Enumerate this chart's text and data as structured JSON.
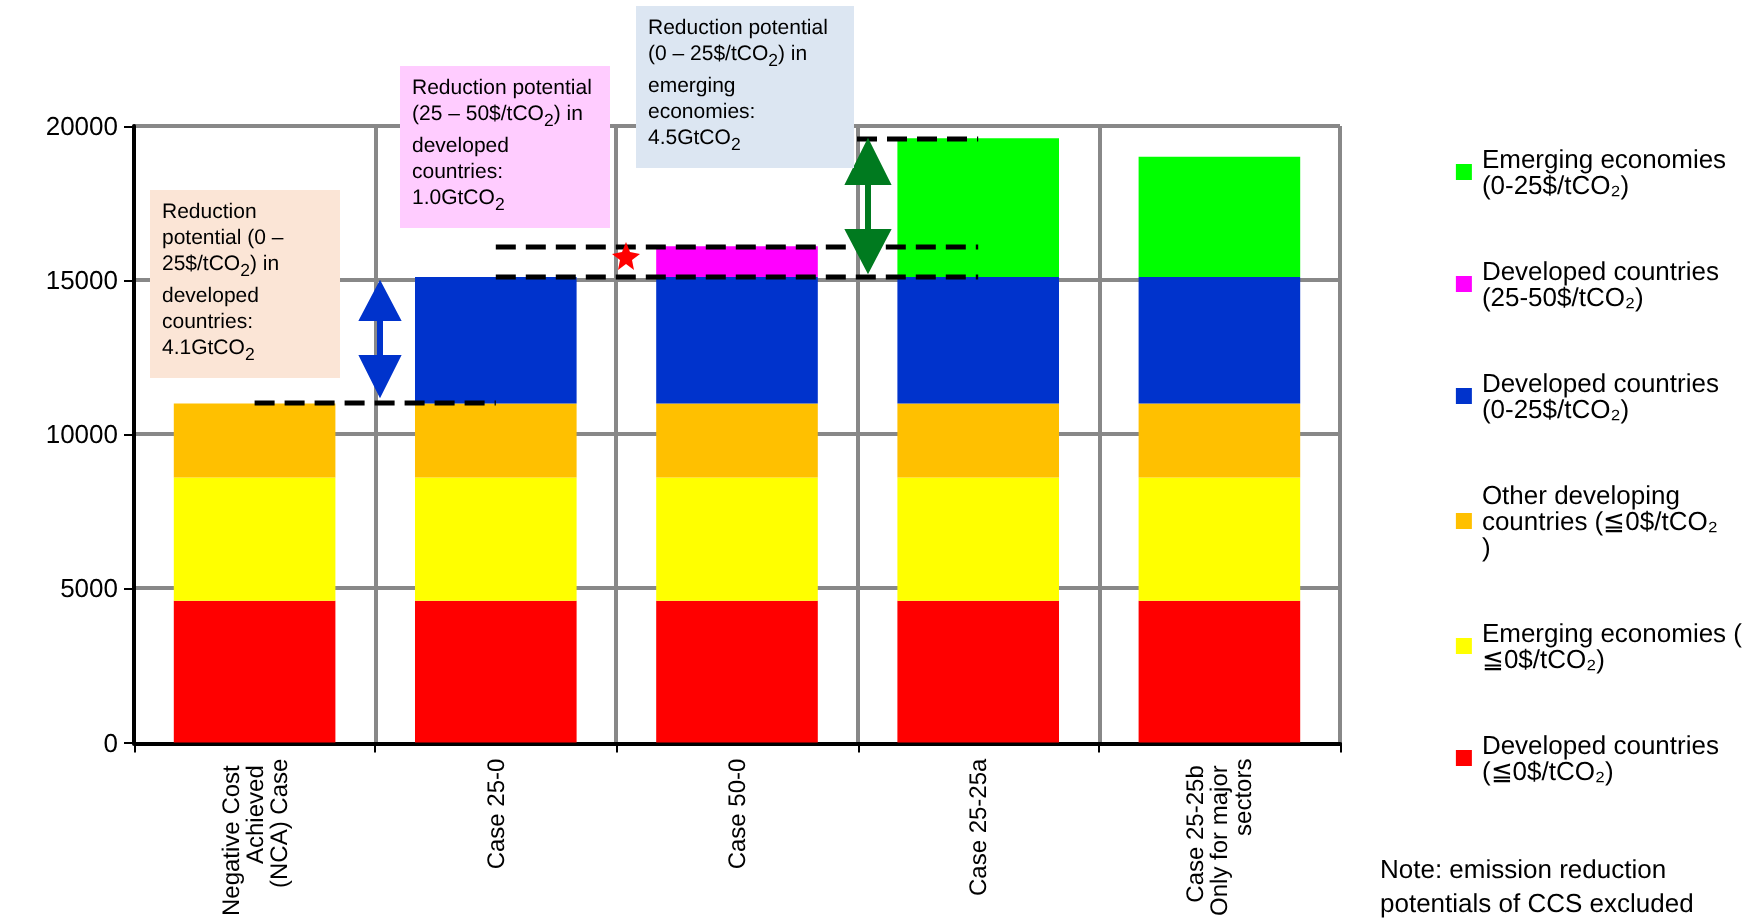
{
  "chart_data": {
    "type": "bar",
    "stacked": true,
    "categories": [
      "Negative Cost Achieved (NCA) Case",
      "Case 25-0",
      "Case 50-0",
      "Case 25-25a",
      "Case 25-25b Only for major sectors"
    ],
    "series": [
      {
        "name": "Developed countries (≦0$/tCO₂)",
        "color": "#ff0000",
        "values": [
          4600,
          4600,
          4600,
          4600,
          4600
        ]
      },
      {
        "name": "Emerging economies (≦0$/tCO₂)",
        "color": "#ffff00",
        "values": [
          4000,
          4000,
          4000,
          4000,
          4000
        ]
      },
      {
        "name": "Other developing countries (≦0$/tCO₂)",
        "color": "#ffc000",
        "values": [
          2400,
          2400,
          2400,
          2400,
          2400
        ]
      },
      {
        "name": "Developed countries (0-25$/tCO₂)",
        "color": "#0033cc",
        "values": [
          null,
          4100,
          4100,
          4100,
          4100
        ]
      },
      {
        "name": "Developed countries (25-50$/tCO₂)",
        "color": "#ff00ff",
        "values": [
          null,
          null,
          1000,
          null,
          null
        ]
      },
      {
        "name": "Emerging economies (0-25$/tCO₂)",
        "color": "#00ff00",
        "values": [
          null,
          null,
          null,
          4500,
          3900
        ]
      }
    ],
    "ref_lines": [
      {
        "axis": "y",
        "value": 11000,
        "color": "#000000",
        "line_style": "dashed"
      },
      {
        "axis": "y",
        "value": 15100,
        "color": "#000000",
        "line_style": "dashed"
      },
      {
        "axis": "y",
        "value": 16100,
        "color": "#000000",
        "line_style": "dashed"
      },
      {
        "axis": "y",
        "value": 19600,
        "color": "#000000",
        "line_style": "dashed"
      }
    ],
    "ylim": [
      0,
      20000
    ],
    "yticks": [
      0,
      5000,
      10000,
      15000,
      20000
    ],
    "grid": true,
    "legend": "right",
    "annotations": [
      "Reduction potential (0 – 25$/tCO$_{2}$) in developed countries: 4.1GtCO$_{2}$",
      "Reduction potential (25 – 50$/tCO$_{2}$) in developed countries: 1.0GtCO$_{2}$",
      "Reduction potential (0 – 25$/tCO$_{2}$) in emerging economies: 4.5GtCO$_{2}$",
      "Note: emission reduction potentials of CCS excluded"
    ]
  }
}
